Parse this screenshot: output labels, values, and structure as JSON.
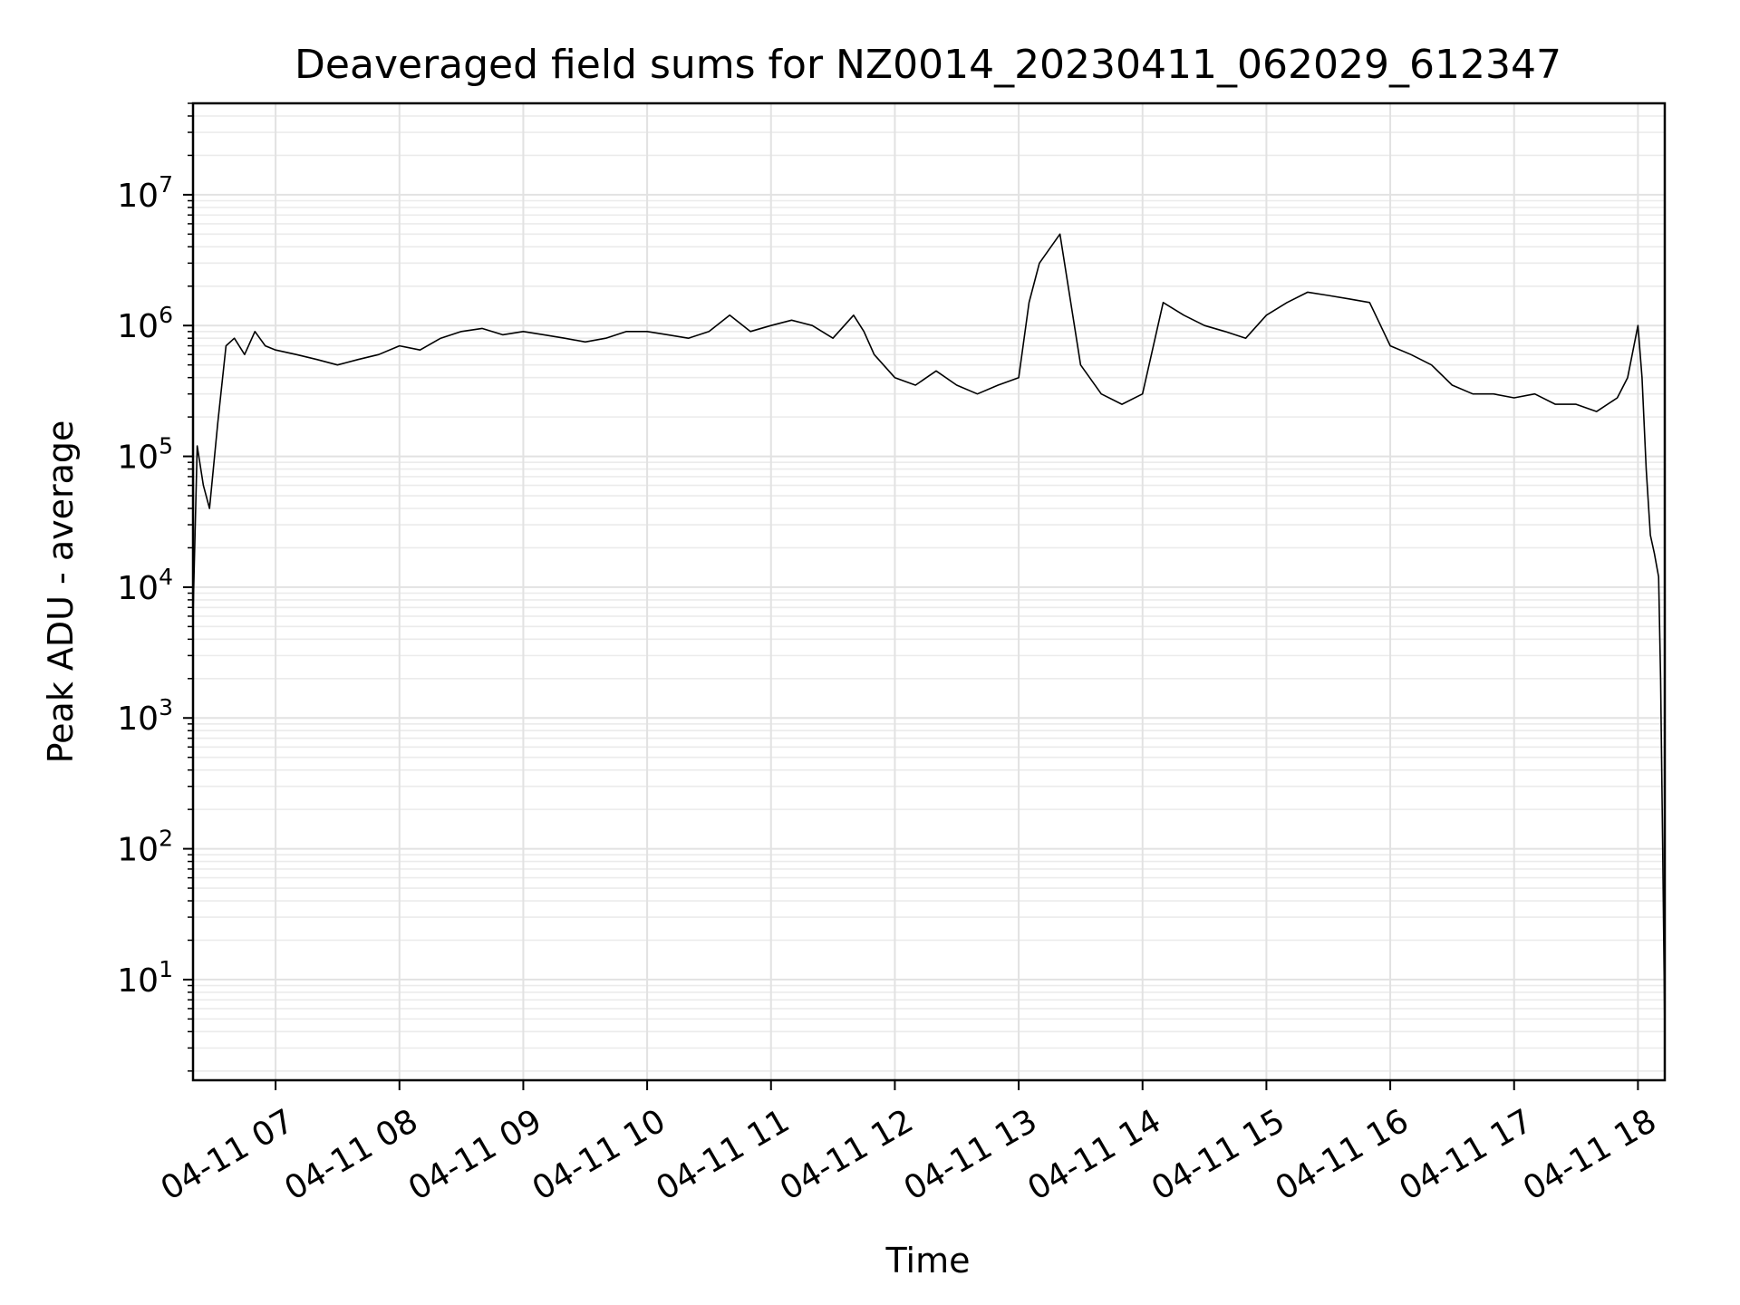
{
  "chart_data": {
    "type": "line",
    "title": "Deaveraged field sums for NZ0014_20230411_062029_612347",
    "xlabel": "Time",
    "ylabel": "Peak ADU - average",
    "yscale": "log",
    "ylim": [
      1.7,
      50000000
    ],
    "xlim": [
      "2023-04-11 06:20",
      "2023-04-11 18:13"
    ],
    "grid": true,
    "line_color": "#000000",
    "x_ticks": [
      {
        "time": "2023-04-11 07:00",
        "label": "04-11 07"
      },
      {
        "time": "2023-04-11 08:00",
        "label": "04-11 08"
      },
      {
        "time": "2023-04-11 09:00",
        "label": "04-11 09"
      },
      {
        "time": "2023-04-11 10:00",
        "label": "04-11 10"
      },
      {
        "time": "2023-04-11 11:00",
        "label": "04-11 11"
      },
      {
        "time": "2023-04-11 12:00",
        "label": "04-11 12"
      },
      {
        "time": "2023-04-11 13:00",
        "label": "04-11 13"
      },
      {
        "time": "2023-04-11 14:00",
        "label": "04-11 14"
      },
      {
        "time": "2023-04-11 15:00",
        "label": "04-11 15"
      },
      {
        "time": "2023-04-11 16:00",
        "label": "04-11 16"
      },
      {
        "time": "2023-04-11 17:00",
        "label": "04-11 17"
      },
      {
        "time": "2023-04-11 18:00",
        "label": "04-11 18"
      }
    ],
    "y_ticks": [
      {
        "value": 10,
        "base": "10",
        "exp": "1"
      },
      {
        "value": 100,
        "base": "10",
        "exp": "2"
      },
      {
        "value": 1000,
        "base": "10",
        "exp": "3"
      },
      {
        "value": 10000,
        "base": "10",
        "exp": "4"
      },
      {
        "value": 100000,
        "base": "10",
        "exp": "5"
      },
      {
        "value": 1000000,
        "base": "10",
        "exp": "6"
      },
      {
        "value": 10000000,
        "base": "10",
        "exp": "7"
      }
    ],
    "series": [
      {
        "x": [
          "2023-04-11 06:20",
          "2023-04-11 06:22",
          "2023-04-11 06:25",
          "2023-04-11 06:28",
          "2023-04-11 06:32",
          "2023-04-11 06:36",
          "2023-04-11 06:40",
          "2023-04-11 06:45",
          "2023-04-11 06:50",
          "2023-04-11 06:55",
          "2023-04-11 07:00",
          "2023-04-11 07:10",
          "2023-04-11 07:20",
          "2023-04-11 07:30",
          "2023-04-11 07:40",
          "2023-04-11 07:50",
          "2023-04-11 08:00",
          "2023-04-11 08:10",
          "2023-04-11 08:20",
          "2023-04-11 08:30",
          "2023-04-11 08:40",
          "2023-04-11 08:50",
          "2023-04-11 09:00",
          "2023-04-11 09:10",
          "2023-04-11 09:20",
          "2023-04-11 09:30",
          "2023-04-11 09:40",
          "2023-04-11 09:50",
          "2023-04-11 10:00",
          "2023-04-11 10:10",
          "2023-04-11 10:20",
          "2023-04-11 10:30",
          "2023-04-11 10:40",
          "2023-04-11 10:50",
          "2023-04-11 11:00",
          "2023-04-11 11:10",
          "2023-04-11 11:20",
          "2023-04-11 11:30",
          "2023-04-11 11:40",
          "2023-04-11 11:45",
          "2023-04-11 11:50",
          "2023-04-11 12:00",
          "2023-04-11 12:10",
          "2023-04-11 12:20",
          "2023-04-11 12:30",
          "2023-04-11 12:40",
          "2023-04-11 12:50",
          "2023-04-11 13:00",
          "2023-04-11 13:05",
          "2023-04-11 13:10",
          "2023-04-11 13:20",
          "2023-04-11 13:30",
          "2023-04-11 13:40",
          "2023-04-11 13:50",
          "2023-04-11 14:00",
          "2023-04-11 14:10",
          "2023-04-11 14:20",
          "2023-04-11 14:30",
          "2023-04-11 14:40",
          "2023-04-11 14:50",
          "2023-04-11 15:00",
          "2023-04-11 15:10",
          "2023-04-11 15:20",
          "2023-04-11 15:30",
          "2023-04-11 15:40",
          "2023-04-11 15:50",
          "2023-04-11 16:00",
          "2023-04-11 16:10",
          "2023-04-11 16:20",
          "2023-04-11 16:30",
          "2023-04-11 16:40",
          "2023-04-11 16:50",
          "2023-04-11 17:00",
          "2023-04-11 17:10",
          "2023-04-11 17:20",
          "2023-04-11 17:30",
          "2023-04-11 17:40",
          "2023-04-11 17:50",
          "2023-04-11 17:55",
          "2023-04-11 18:00",
          "2023-04-11 18:02",
          "2023-04-11 18:04",
          "2023-04-11 18:06",
          "2023-04-11 18:08",
          "2023-04-11 18:10",
          "2023-04-11 18:11",
          "2023-04-11 18:12",
          "2023-04-11 18:13"
        ],
        "y": [
          6000,
          120000,
          60000,
          40000,
          180000,
          700000,
          800000,
          600000,
          900000,
          700000,
          650000,
          600000,
          550000,
          500000,
          550000,
          600000,
          700000,
          650000,
          800000,
          900000,
          950000,
          850000,
          900000,
          850000,
          800000,
          750000,
          800000,
          900000,
          900000,
          850000,
          800000,
          900000,
          1200000,
          900000,
          1000000,
          1100000,
          1000000,
          800000,
          1200000,
          900000,
          600000,
          400000,
          350000,
          450000,
          350000,
          300000,
          350000,
          400000,
          1500000,
          3000000,
          5000000,
          500000,
          300000,
          250000,
          300000,
          1500000,
          1200000,
          1000000,
          900000,
          800000,
          1200000,
          1500000,
          1800000,
          1700000,
          1600000,
          1500000,
          700000,
          600000,
          500000,
          350000,
          300000,
          300000,
          280000,
          300000,
          250000,
          250000,
          220000,
          280000,
          400000,
          1000000,
          400000,
          80000,
          25000,
          18000,
          12000,
          2000,
          100,
          4
        ]
      }
    ]
  }
}
